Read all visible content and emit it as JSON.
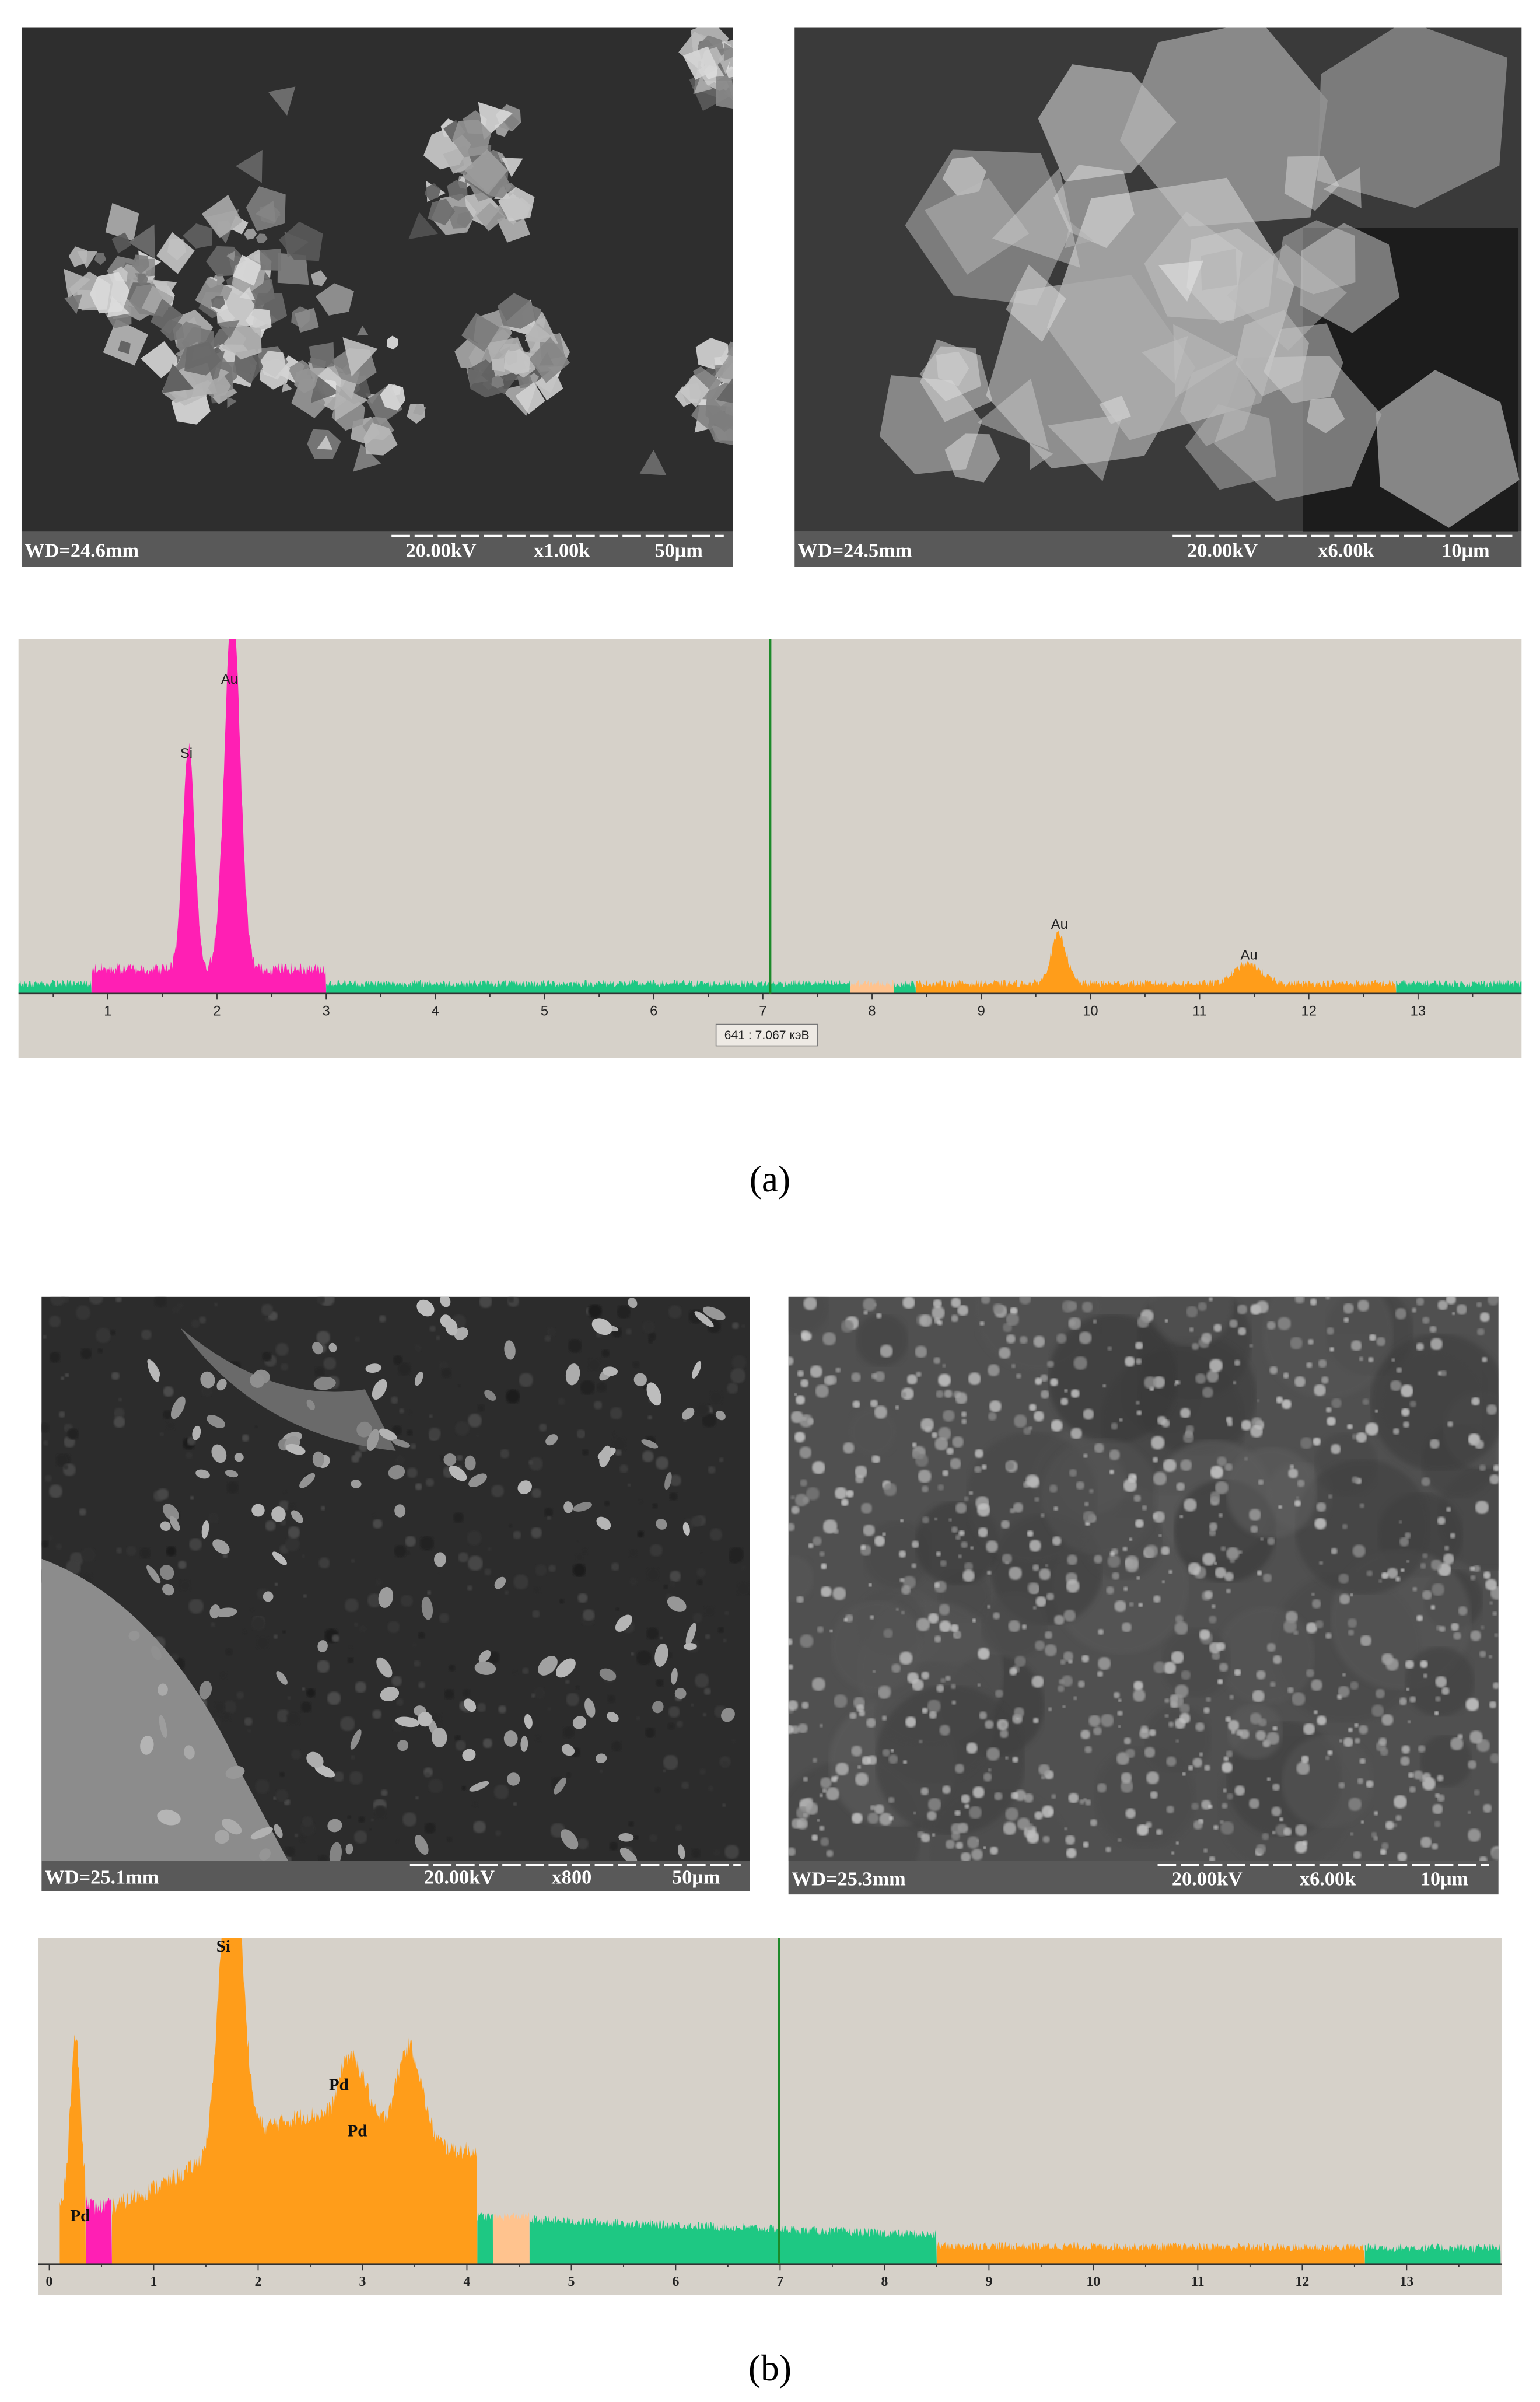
{
  "panel_a": {
    "sem_left": {
      "wd": "WD=24.6mm",
      "kv": "20.00kV",
      "mag": "x1.00k",
      "scale": "50μm"
    },
    "sem_right": {
      "wd": "WD=24.5mm",
      "kv": "20.00kV",
      "mag": "x6.00k",
      "scale": "10μm"
    },
    "spectrum": {
      "peak_labels": [
        "Si",
        "Au",
        "Au",
        "Au"
      ],
      "ticks": [
        "1",
        "2",
        "3",
        "4",
        "5",
        "6",
        "7",
        "8",
        "9",
        "10",
        "11",
        "12",
        "13"
      ],
      "cursor": "641 : 7.067 кэВ"
    },
    "caption": "(a)"
  },
  "panel_b": {
    "sem_left": {
      "wd": "WD=25.1mm",
      "kv": "20.00kV",
      "mag": "x800",
      "scale": "50μm"
    },
    "sem_right": {
      "wd": "WD=25.3mm",
      "kv": "20.00kV",
      "mag": "x6.00k",
      "scale": "10μm"
    },
    "spectrum": {
      "peak_labels": [
        "Si",
        "Pd",
        "Pd",
        "Pd"
      ],
      "ticks": [
        "0",
        "1",
        "2",
        "3",
        "4",
        "5",
        "6",
        "7",
        "8",
        "9",
        "10",
        "11",
        "12",
        "13"
      ]
    },
    "caption": "(b)"
  }
}
